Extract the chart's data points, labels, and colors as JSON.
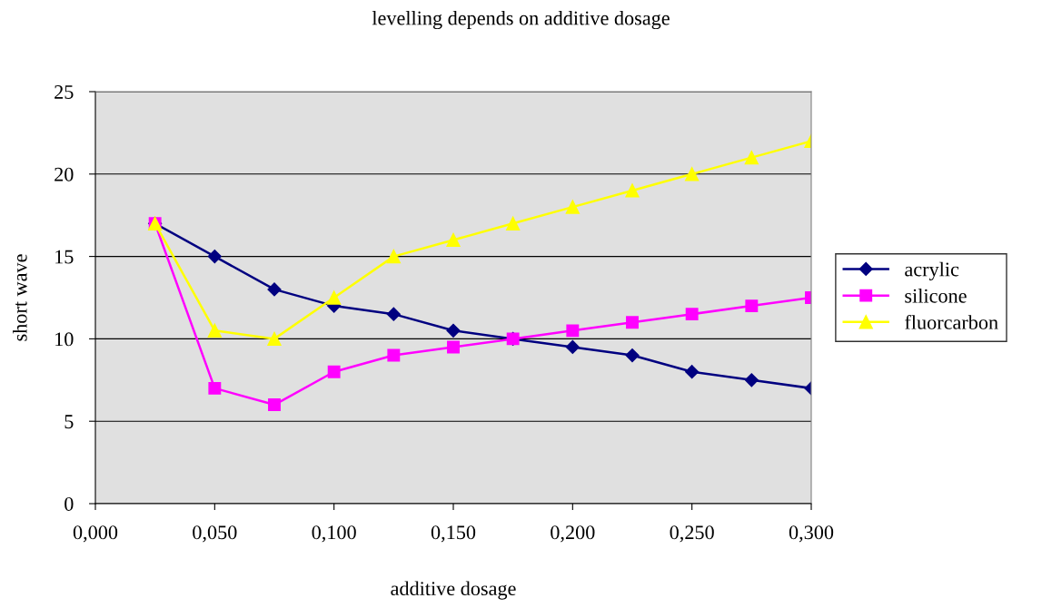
{
  "chart_data": {
    "type": "line",
    "title": "levelling depends on additive dosage",
    "xlabel": "additive dosage",
    "ylabel": "short wave",
    "x": [
      0.025,
      0.05,
      0.075,
      0.1,
      0.125,
      0.15,
      0.175,
      0.2,
      0.225,
      0.25,
      0.275,
      0.3
    ],
    "series": [
      {
        "name": "acrylic",
        "color": "#000080",
        "marker": "diamond",
        "values": [
          17,
          15,
          13,
          12,
          11.5,
          10.5,
          10,
          9.5,
          9,
          8,
          7.5,
          7
        ]
      },
      {
        "name": "silicone",
        "color": "#ff00ff",
        "marker": "square",
        "values": [
          17,
          7,
          6,
          8,
          9,
          9.5,
          10,
          10.5,
          11,
          11.5,
          12,
          12.5
        ]
      },
      {
        "name": "fluorcarbon",
        "color": "#ffff00",
        "marker": "triangle",
        "values": [
          17,
          10.5,
          10,
          12.5,
          15,
          16,
          17,
          18,
          19,
          20,
          21,
          22
        ]
      }
    ],
    "xlim": [
      0,
      0.3
    ],
    "xticks": [
      {
        "value": 0,
        "label": "0,000"
      },
      {
        "value": 0.05,
        "label": "0,050"
      },
      {
        "value": 0.1,
        "label": "0,100"
      },
      {
        "value": 0.15,
        "label": "0,150"
      },
      {
        "value": 0.2,
        "label": "0,200"
      },
      {
        "value": 0.25,
        "label": "0,250"
      },
      {
        "value": 0.3,
        "label": "0,300"
      }
    ],
    "ylim": [
      0,
      25
    ],
    "yticks": [
      0,
      5,
      10,
      15,
      20,
      25
    ],
    "grid": "y",
    "legend": "right",
    "line_style": "solid"
  }
}
